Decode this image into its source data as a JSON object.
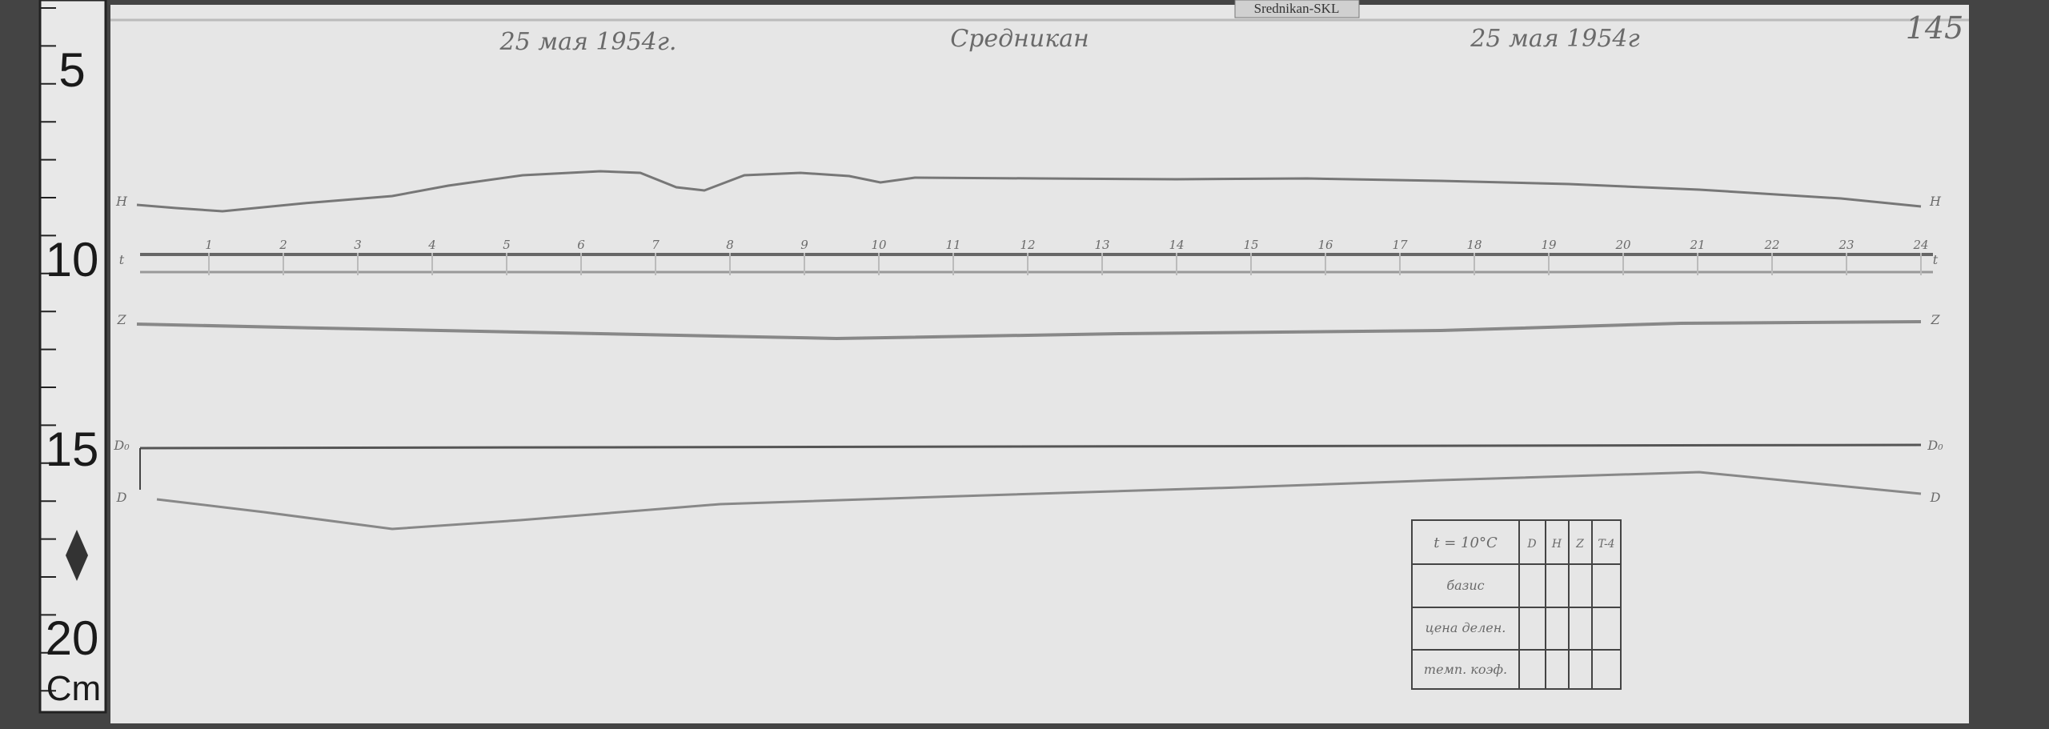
{
  "ruler": {
    "labels": [
      "5",
      "10",
      "15",
      "20"
    ],
    "unit": "Cm"
  },
  "label_tag": "Srednikan-SKL",
  "header": {
    "date_left": "25 мая 1954г.",
    "station": "Средникан",
    "date_right": "25 мая 1954г",
    "page_number": "145"
  },
  "hour_marks": [
    "1",
    "2",
    "3",
    "4",
    "5",
    "6",
    "7",
    "8",
    "9",
    "10",
    "11",
    "12",
    "13",
    "14",
    "15",
    "16",
    "17",
    "18",
    "19",
    "20",
    "21",
    "22",
    "23",
    "24"
  ],
  "trace_labels": [
    "H",
    "t",
    "Z",
    "D₀",
    "D"
  ],
  "table": {
    "header": [
      "t = 10°C",
      "D",
      "H",
      "Z",
      "T-4"
    ],
    "rows": [
      "базис",
      "цена делен.",
      "темп. коэф."
    ]
  }
}
